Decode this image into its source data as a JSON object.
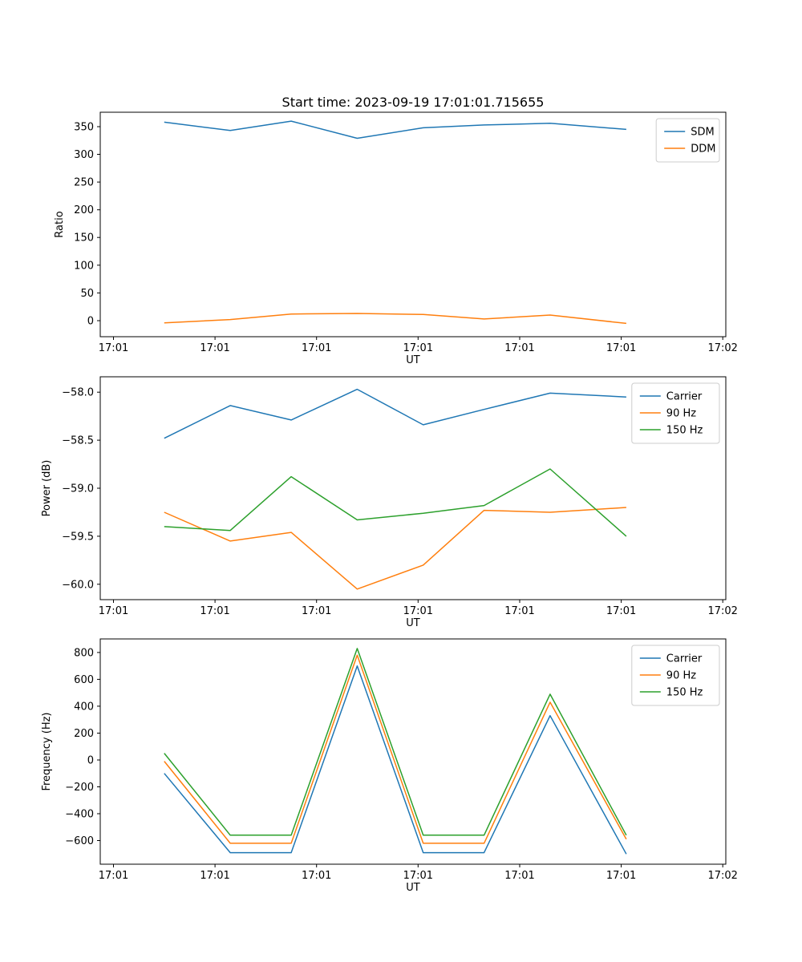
{
  "chart_data": [
    {
      "type": "line",
      "title": "Start time: 2023-09-19 17:01:01.715655",
      "xlabel": "UT",
      "ylabel": "Ratio",
      "x_unit": "seconds after 17:01:00",
      "xlim": [
        -1.3,
        60.3
      ],
      "ylim": [
        -29,
        376
      ],
      "grid": false,
      "legend_position": "upper right",
      "xticks": [
        {
          "v": 0,
          "label": "17:01"
        },
        {
          "v": 10,
          "label": "17:01"
        },
        {
          "v": 20,
          "label": "17:01"
        },
        {
          "v": 30,
          "label": "17:01"
        },
        {
          "v": 40,
          "label": "17:01"
        },
        {
          "v": 50,
          "label": "17:01"
        },
        {
          "v": 60,
          "label": "17:02"
        }
      ],
      "yticks": [
        {
          "v": 0,
          "label": "0"
        },
        {
          "v": 50,
          "label": "50"
        },
        {
          "v": 100,
          "label": "100"
        },
        {
          "v": 150,
          "label": "150"
        },
        {
          "v": 200,
          "label": "200"
        },
        {
          "v": 250,
          "label": "250"
        },
        {
          "v": 300,
          "label": "300"
        },
        {
          "v": 350,
          "label": "350"
        }
      ],
      "x": [
        5,
        11.5,
        17.5,
        24,
        30.5,
        36.5,
        43,
        50.5
      ],
      "series": [
        {
          "name": "SDM",
          "color": "#1f77b4",
          "values": [
            358,
            343,
            360,
            329,
            348,
            353,
            356,
            345
          ]
        },
        {
          "name": "DDM",
          "color": "#ff7f0e",
          "values": [
            -4,
            2,
            12,
            13,
            11,
            3,
            10,
            -5
          ]
        }
      ]
    },
    {
      "type": "line",
      "title": "",
      "xlabel": "UT",
      "ylabel": "Power (dB)",
      "x_unit": "seconds after 17:01:00",
      "xlim": [
        -1.3,
        60.3
      ],
      "ylim": [
        -60.16,
        -57.84
      ],
      "grid": false,
      "legend_position": "upper right",
      "xticks": [
        {
          "v": 0,
          "label": "17:01"
        },
        {
          "v": 10,
          "label": "17:01"
        },
        {
          "v": 20,
          "label": "17:01"
        },
        {
          "v": 30,
          "label": "17:01"
        },
        {
          "v": 40,
          "label": "17:01"
        },
        {
          "v": 50,
          "label": "17:01"
        },
        {
          "v": 60,
          "label": "17:02"
        }
      ],
      "yticks": [
        {
          "v": -60.0,
          "label": "−60.0"
        },
        {
          "v": -59.5,
          "label": "−59.5"
        },
        {
          "v": -59.0,
          "label": "−59.0"
        },
        {
          "v": -58.5,
          "label": "−58.5"
        },
        {
          "v": -58.0,
          "label": "−58.0"
        }
      ],
      "x": [
        5,
        11.5,
        17.5,
        24,
        30.5,
        36.5,
        43,
        50.5
      ],
      "series": [
        {
          "name": "Carrier",
          "color": "#1f77b4",
          "values": [
            -58.48,
            -58.14,
            -58.29,
            -57.97,
            -58.34,
            -58.18,
            -58.01,
            -58.05
          ]
        },
        {
          "name": "90 Hz",
          "color": "#ff7f0e",
          "values": [
            -59.25,
            -59.55,
            -59.46,
            -60.05,
            -59.8,
            -59.23,
            -59.25,
            -59.2
          ]
        },
        {
          "name": "150 Hz",
          "color": "#2ca02c",
          "values": [
            -59.4,
            -59.44,
            -58.88,
            -59.33,
            -59.26,
            -59.18,
            -58.8,
            -59.5
          ]
        }
      ]
    },
    {
      "type": "line",
      "title": "",
      "xlabel": "UT",
      "ylabel": "Frequency (Hz)",
      "x_unit": "seconds after 17:01:00",
      "xlim": [
        -1.3,
        60.3
      ],
      "ylim": [
        -776,
        901
      ],
      "grid": false,
      "legend_position": "upper right",
      "xticks": [
        {
          "v": 0,
          "label": "17:01"
        },
        {
          "v": 10,
          "label": "17:01"
        },
        {
          "v": 20,
          "label": "17:01"
        },
        {
          "v": 30,
          "label": "17:01"
        },
        {
          "v": 40,
          "label": "17:01"
        },
        {
          "v": 50,
          "label": "17:01"
        },
        {
          "v": 60,
          "label": "17:02"
        }
      ],
      "yticks": [
        {
          "v": -600,
          "label": "−600"
        },
        {
          "v": -400,
          "label": "−400"
        },
        {
          "v": -200,
          "label": "−200"
        },
        {
          "v": 0,
          "label": "0"
        },
        {
          "v": 200,
          "label": "200"
        },
        {
          "v": 400,
          "label": "400"
        },
        {
          "v": 600,
          "label": "600"
        },
        {
          "v": 800,
          "label": "800"
        }
      ],
      "x": [
        5,
        11.5,
        17.5,
        24,
        30.5,
        36.5,
        43,
        50.5
      ],
      "series": [
        {
          "name": "Carrier",
          "color": "#1f77b4",
          "values": [
            -100,
            -690,
            -690,
            700,
            -690,
            -690,
            330,
            -700
          ]
        },
        {
          "name": "90 Hz",
          "color": "#ff7f0e",
          "values": [
            -10,
            -620,
            -620,
            780,
            -620,
            -620,
            430,
            -590
          ]
        },
        {
          "name": "150 Hz",
          "color": "#2ca02c",
          "values": [
            50,
            -560,
            -560,
            830,
            -560,
            -560,
            490,
            -560
          ]
        }
      ]
    }
  ]
}
